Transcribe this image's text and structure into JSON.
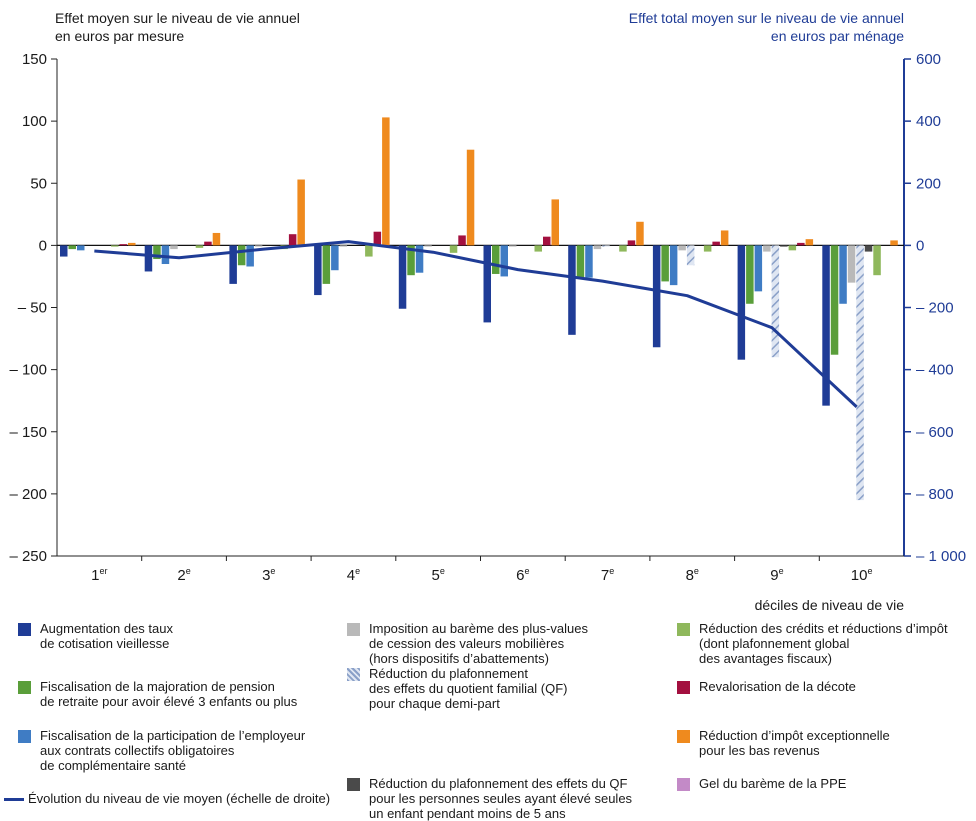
{
  "chart_data": {
    "type": "bar",
    "y_left_title": [
      "Effet moyen sur le niveau de vie annuel",
      "en euros par mesure"
    ],
    "y_right_title": [
      "Effet total moyen sur le niveau de vie annuel",
      "en euros par ménage"
    ],
    "xlabel": "déciles de niveau de vie",
    "categories": [
      {
        "num": "1",
        "sup": "er"
      },
      {
        "num": "2",
        "sup": "e"
      },
      {
        "num": "3",
        "sup": "e"
      },
      {
        "num": "4",
        "sup": "e"
      },
      {
        "num": "5",
        "sup": "e"
      },
      {
        "num": "6",
        "sup": "e"
      },
      {
        "num": "7",
        "sup": "e"
      },
      {
        "num": "8",
        "sup": "e"
      },
      {
        "num": "9",
        "sup": "e"
      },
      {
        "num": "10",
        "sup": "e"
      }
    ],
    "ylim_left": [
      -250,
      150
    ],
    "yticks_left": [
      "150",
      "100",
      "50",
      "0",
      "– 50",
      "– 100",
      "– 150",
      "– 200",
      "– 250"
    ],
    "ylim_right": [
      -1000,
      600
    ],
    "yticks_right": [
      "600",
      "400",
      "200",
      "0",
      "– 200",
      "– 400",
      "– 600",
      "– 800",
      "– 1 000"
    ],
    "series": [
      {
        "name": "Augmentation des taux\nde cotisation vieillesse",
        "color": "#1f3c96",
        "pattern": "solid",
        "values": [
          -9,
          -21,
          -31,
          -40,
          -51,
          -62,
          -72,
          -82,
          -92,
          -129
        ]
      },
      {
        "name": "Fiscalisation de la majoration de pension\nde retraite pour avoir élevé 3 enfants ou plus",
        "color": "#5a9e3a",
        "pattern": "solid",
        "values": [
          -3,
          -11,
          -16,
          -31,
          -24,
          -23,
          -26,
          -29,
          -47,
          -88
        ]
      },
      {
        "name": "Fiscalisation de la participation de l’employeur\naux contrats collectifs obligatoires\nde complémentaire santé",
        "color": "#3f7cc4",
        "pattern": "solid",
        "values": [
          -4,
          -15,
          -17,
          -20,
          -22,
          -25,
          -26,
          -32,
          -37,
          -47
        ]
      },
      {
        "name": "Imposition au barème des plus-values\nde cession des valeurs mobilières\n(hors dispositifs d’abattements)",
        "color": "#b9b9b9",
        "pattern": "solid",
        "values": [
          0,
          -3,
          -1,
          -1,
          -1,
          -1,
          -3,
          -4,
          -5,
          -30
        ]
      },
      {
        "name": "Réduction du plafonnement\ndes effets du quotient familial (QF)\npour chaque demi-part",
        "color": "#8aa0c8",
        "pattern": "hatch",
        "values": [
          0,
          0,
          0,
          0,
          0,
          0,
          -1,
          -16,
          -90,
          -205
        ]
      },
      {
        "name": "Réduction du plafonnement des effets du QF\npour les personnes seules ayant élevé seules\nun enfant pendant moins de 5 ans",
        "color": "#4a4a4a",
        "pattern": "solid",
        "values": [
          0,
          0,
          0,
          0,
          0,
          0,
          0,
          0,
          -1,
          -5
        ]
      },
      {
        "name": "Réduction des crédits et réductions d’impôt\n(dont plafonnement global\ndes avantages fiscaux)",
        "color": "#8fb85c",
        "pattern": "solid",
        "values": [
          -1,
          -2,
          -3,
          -9,
          -6,
          -5,
          -5,
          -5,
          -4,
          -24
        ]
      },
      {
        "name": "Revalorisation de la décote",
        "color": "#a3103f",
        "pattern": "solid",
        "values": [
          1,
          3,
          9,
          11,
          8,
          7,
          4,
          3,
          2,
          0
        ]
      },
      {
        "name": "Réduction d’impôt exceptionnelle\npour les bas revenus",
        "color": "#ef8a1e",
        "pattern": "solid",
        "values": [
          2,
          10,
          53,
          103,
          77,
          37,
          19,
          12,
          5,
          4
        ]
      },
      {
        "name": "Gel du barème de la PPE",
        "color": "#c38ac7",
        "pattern": "solid",
        "values": [
          0,
          0,
          0,
          0,
          0,
          0,
          0,
          0,
          0,
          0
        ]
      }
    ],
    "line": {
      "name": "Évolution du niveau de vie moyen (échelle de droite)",
      "color": "#1f3c96",
      "axis": "right",
      "values": [
        -18,
        -40,
        -12,
        12,
        -22,
        -78,
        -115,
        -162,
        -265,
        -520
      ]
    }
  }
}
